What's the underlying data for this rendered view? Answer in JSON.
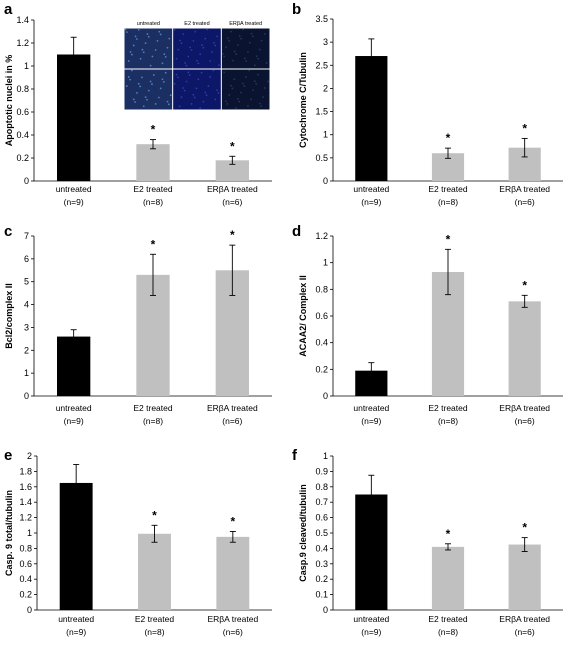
{
  "chart_data": [
    {
      "panel": "a",
      "type": "bar",
      "ylabel": "Apoptotic nuclei in %",
      "ylim": [
        0,
        1.4
      ],
      "yticks": [
        0,
        0.2,
        0.4,
        0.6,
        0.8,
        1,
        1.2,
        1.4
      ],
      "categories": [
        "untreated",
        "E2 treated",
        "ERβA treated"
      ],
      "sublabels": [
        "(n=9)",
        "(n=8)",
        "(n=6)"
      ],
      "values": [
        1.1,
        0.32,
        0.18
      ],
      "errors": [
        0.15,
        0.04,
        0.035
      ],
      "significant": [
        "",
        "*",
        "*"
      ],
      "colors": [
        "#000000",
        "#c0c0c0",
        "#c0c0c0"
      ],
      "inset_labels": [
        "untreated",
        "E2 treated",
        "ERβA treated"
      ]
    },
    {
      "panel": "b",
      "type": "bar",
      "ylabel": "Cytochrome C/Tubulin",
      "ylim": [
        0,
        3.5
      ],
      "yticks": [
        0,
        0.5,
        1,
        1.5,
        2,
        2.5,
        3,
        3.5
      ],
      "categories": [
        "untreated",
        "E2 treated",
        "ERβA treated"
      ],
      "sublabels": [
        "(n=9)",
        "(n=8)",
        "(n=6)"
      ],
      "values": [
        2.7,
        0.6,
        0.72
      ],
      "errors": [
        0.37,
        0.11,
        0.2
      ],
      "significant": [
        "",
        "*",
        "*"
      ],
      "colors": [
        "#000000",
        "#c0c0c0",
        "#c0c0c0"
      ]
    },
    {
      "panel": "c",
      "type": "bar",
      "ylabel": "Bcl2/complex II",
      "ylim": [
        0,
        7
      ],
      "yticks": [
        0,
        1,
        2,
        3,
        4,
        5,
        6,
        7
      ],
      "categories": [
        "untreated",
        "E2 treated",
        "ERβA treated"
      ],
      "sublabels": [
        "(n=9)",
        "(n=8)",
        "(n=6)"
      ],
      "values": [
        2.6,
        5.3,
        5.5
      ],
      "errors": [
        0.3,
        0.9,
        1.1
      ],
      "significant": [
        "",
        "*",
        "*"
      ],
      "colors": [
        "#000000",
        "#c0c0c0",
        "#c0c0c0"
      ]
    },
    {
      "panel": "d",
      "type": "bar",
      "ylabel": "ACAA2/ Complex II",
      "ylim": [
        0,
        1.2
      ],
      "yticks": [
        0,
        0.2,
        0.4,
        0.6,
        0.8,
        1,
        1.2
      ],
      "categories": [
        "untreated",
        "E2 treated",
        "ERβA treated"
      ],
      "sublabels": [
        "(n=9)",
        "(n=8)",
        "(n=6)"
      ],
      "values": [
        0.19,
        0.93,
        0.71
      ],
      "errors": [
        0.06,
        0.17,
        0.045
      ],
      "significant": [
        "",
        "*",
        "*"
      ],
      "colors": [
        "#000000",
        "#c0c0c0",
        "#c0c0c0"
      ]
    },
    {
      "panel": "e",
      "type": "bar",
      "ylabel": "Casp. 9 total/tubulin",
      "ylim": [
        0,
        2
      ],
      "yticks": [
        0,
        0.2,
        0.4,
        0.6,
        0.8,
        1,
        1.2,
        1.4,
        1.6,
        1.8,
        2
      ],
      "categories": [
        "untreated",
        "E2 treated",
        "ERβA treated"
      ],
      "sublabels": [
        "(n=9)",
        "(n=8)",
        "(n=6)"
      ],
      "values": [
        1.65,
        0.99,
        0.95
      ],
      "errors": [
        0.24,
        0.11,
        0.07
      ],
      "significant": [
        "",
        "*",
        "*"
      ],
      "colors": [
        "#000000",
        "#c0c0c0",
        "#c0c0c0"
      ]
    },
    {
      "panel": "f",
      "type": "bar",
      "ylabel": "Casp.9 cleaved/tubulin",
      "ylim": [
        0,
        1
      ],
      "yticks": [
        0,
        0.1,
        0.2,
        0.3,
        0.4,
        0.5,
        0.6,
        0.7,
        0.8,
        0.9,
        1
      ],
      "categories": [
        "untreated",
        "E2 treated",
        "ERβA treated"
      ],
      "sublabels": [
        "(n=9)",
        "(n=8)",
        "(n=6)"
      ],
      "values": [
        0.75,
        0.41,
        0.425
      ],
      "errors": [
        0.125,
        0.02,
        0.045
      ],
      "significant": [
        "",
        "*",
        "*"
      ],
      "colors": [
        "#000000",
        "#c0c0c0",
        "#c0c0c0"
      ]
    }
  ]
}
